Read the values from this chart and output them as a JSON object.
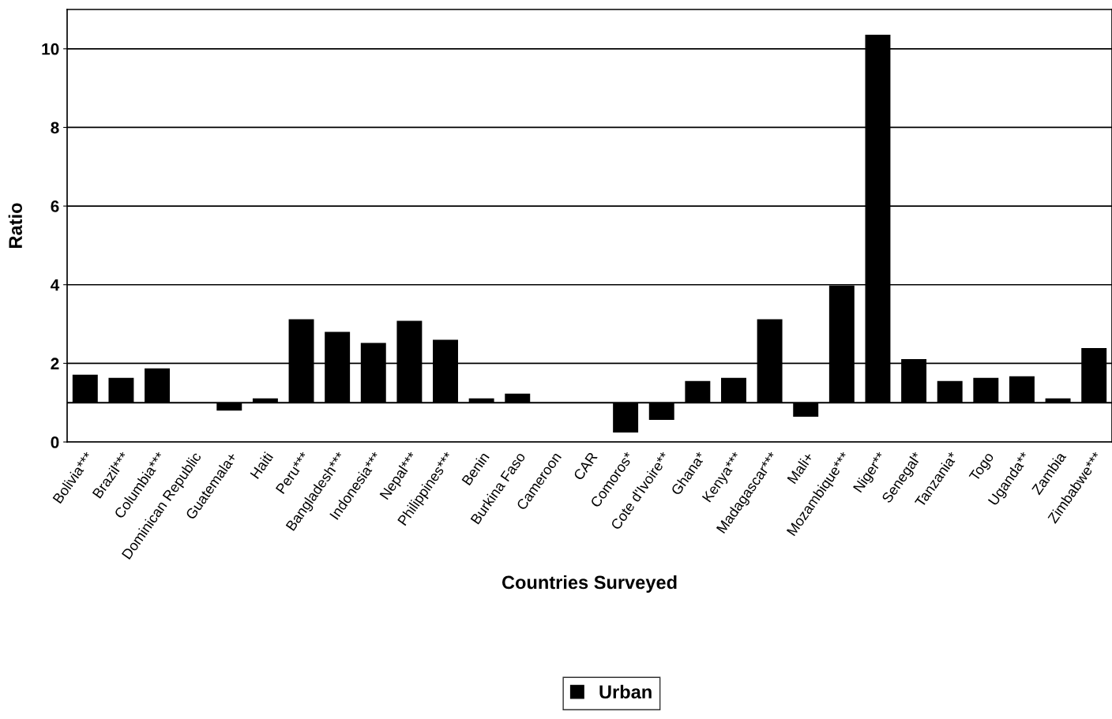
{
  "chart_data": {
    "type": "bar",
    "ylabel": "Ratio",
    "xlabel": "Countries Surveyed",
    "categories": [
      "Bolivia***",
      "Brazil***",
      "Columbia***",
      "Dominican Republic",
      "Guatemala+",
      "Haiti",
      "Peru***",
      "Bangladesh***",
      "Indonesia***",
      "Nepal***",
      "Philippines***",
      "Benin",
      "Burkina Faso",
      "Cameroon",
      "CAR",
      "Comoros*",
      "Cote d'Ivoire**",
      "Ghana*",
      "Kenya***",
      "Madagascar***",
      "Mali+",
      "Mozambique***",
      "Niger**",
      "Senegal*",
      "Tanzania*",
      "Togo",
      "Uganda**",
      "Zambia",
      "Zimbabwe***"
    ],
    "series": [
      {
        "name": "Urban",
        "color": "#000000",
        "values": [
          0.71,
          0.63,
          0.87,
          null,
          -0.2,
          0.11,
          2.12,
          1.8,
          1.52,
          2.08,
          1.6,
          0.11,
          0.23,
          null,
          null,
          -0.76,
          -0.44,
          0.55,
          0.63,
          2.12,
          -0.36,
          2.98,
          9.36,
          1.11,
          0.55,
          0.63,
          0.67,
          0.11,
          1.39
        ],
        "base": [
          1,
          1,
          1,
          null,
          1,
          1,
          1,
          1,
          1,
          1,
          1,
          1,
          1,
          null,
          null,
          1,
          1,
          1,
          1,
          1,
          1,
          1,
          1,
          1,
          1,
          1,
          1,
          1,
          1
        ]
      }
    ],
    "ylim": [
      0,
      11
    ],
    "yticks": [
      0,
      2,
      4,
      6,
      8,
      10
    ],
    "grid": "y",
    "legend": "bottom",
    "ref_lines": [
      {
        "axis": "y",
        "value": 1,
        "color": "#000000"
      }
    ]
  }
}
